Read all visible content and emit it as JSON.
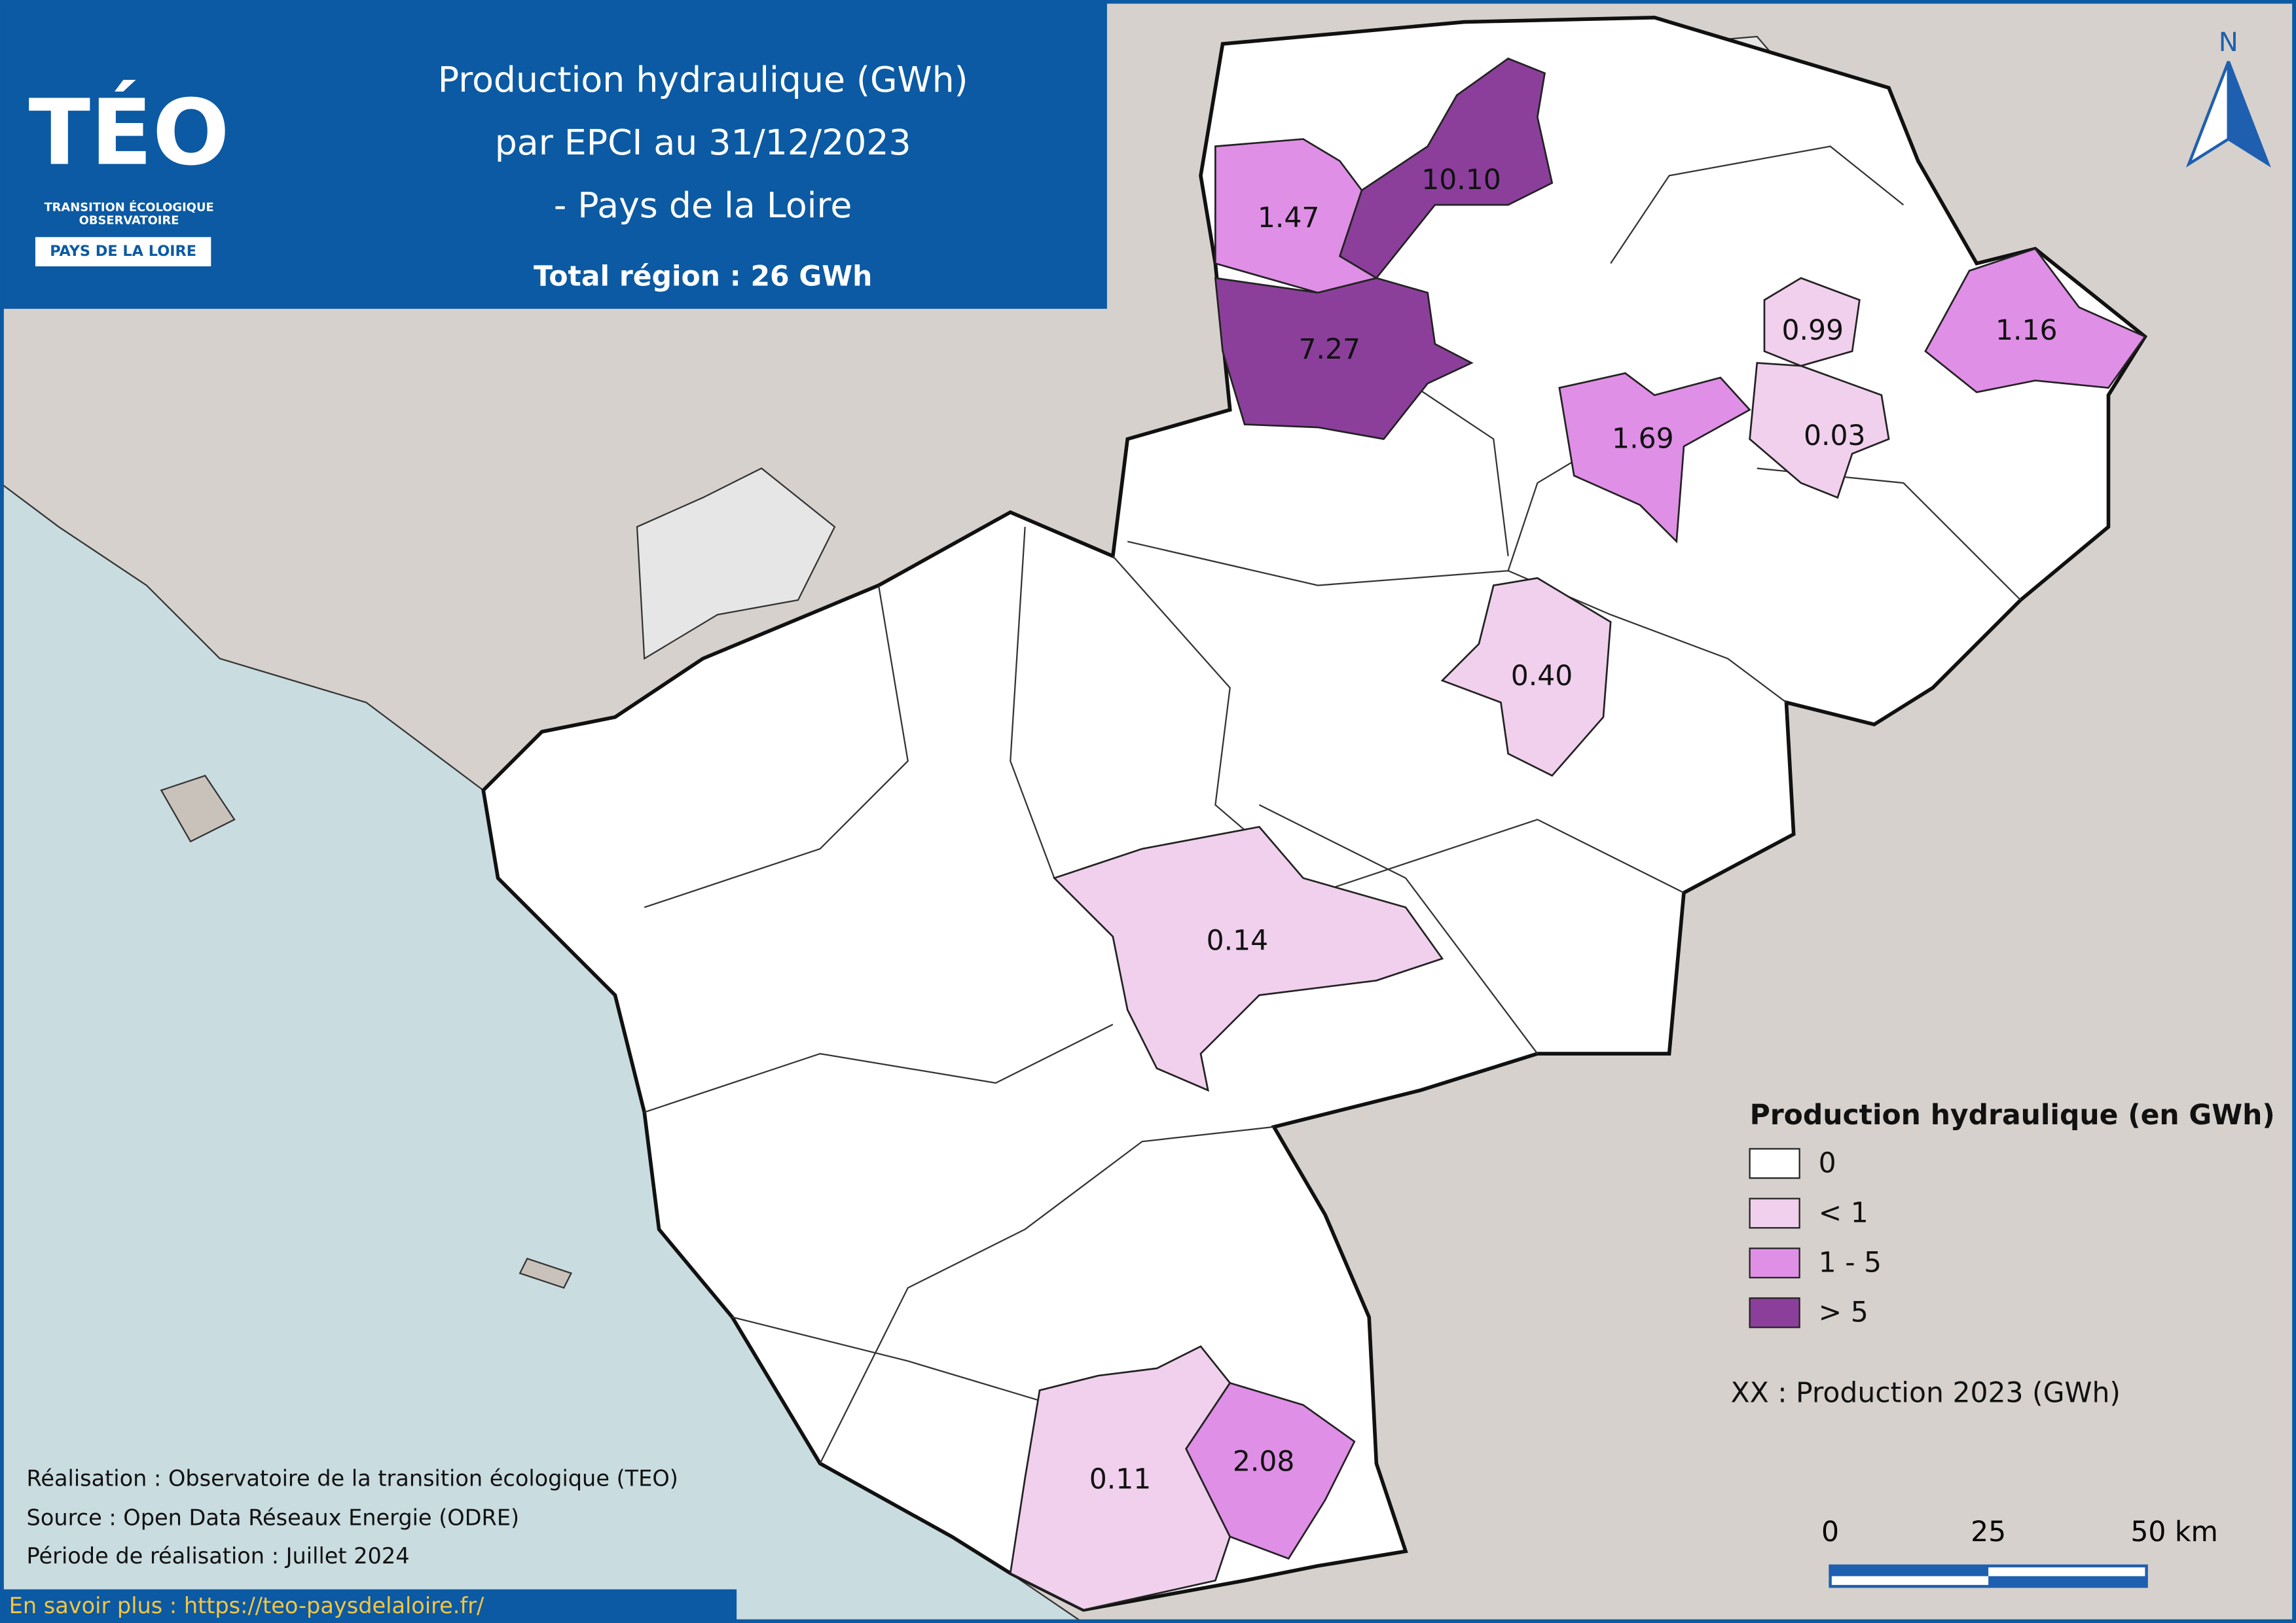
{
  "header": {
    "logo_title": "TÉO",
    "logo_subtitle": [
      "TRANSITION ÉCOLOGIQUE",
      "OBSERVATOIRE"
    ],
    "logo_region": "PAYS DE LA LOIRE",
    "title": [
      "Production hydraulique (GWh)",
      "par EPCI au 31/12/2023",
      "- Pays de la Loire"
    ],
    "total": "Total région : 26 GWh"
  },
  "map_labels": [
    "10.10",
    "1.47",
    "7.27",
    "0.99",
    "1.16",
    "1.69",
    "0.03",
    "0.40",
    "0.14",
    "0.11",
    "2.08"
  ],
  "legend": {
    "title": "Production hydraulique (en GWh)",
    "items": [
      {
        "label": "0",
        "color": "#ffffff"
      },
      {
        "label": "< 1",
        "color": "#f0d0ec"
      },
      {
        "label": "1 - 5",
        "color": "#df8fe6"
      },
      {
        "label": "> 5",
        "color": "#8b3f9b"
      }
    ]
  },
  "note": "XX : Production 2023 (GWh)",
  "scale": [
    "0",
    "25",
    "50 km"
  ],
  "north": "N",
  "credits": [
    "Réalisation : Observatoire de la transition écologique (TEO)",
    "Source : Open Data Réseaux Energie (ODRE)",
    "Période de réalisation : Juillet 2024"
  ],
  "link": "En savoir plus : https://teo-paysdelaloire.fr/"
}
